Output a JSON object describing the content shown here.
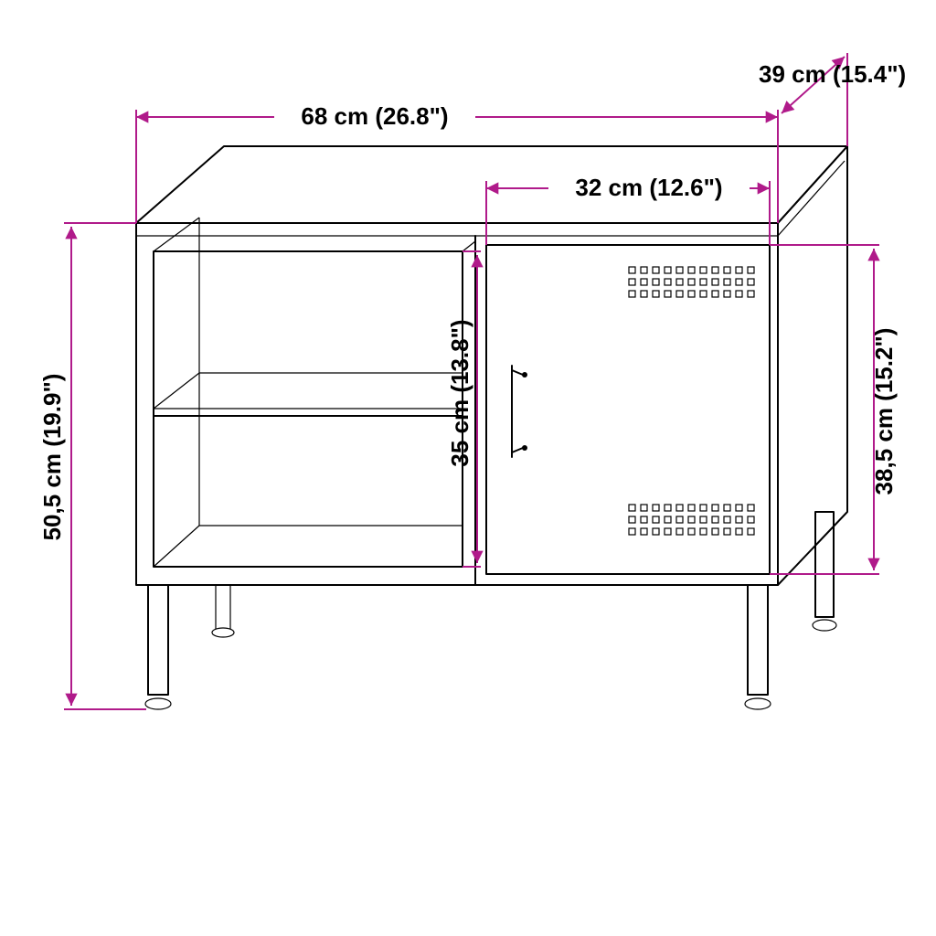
{
  "type": "dimensioned-line-drawing",
  "accent_color": "#b01a8a",
  "line_color": "#000000",
  "background_color": "#ffffff",
  "font_size_pt": 20,
  "dimensions": {
    "width": {
      "label": "68 cm (26.8\")"
    },
    "depth": {
      "label": "39 cm (15.4\")"
    },
    "door_width": {
      "label": "32 cm (12.6\")"
    },
    "shelf_height": {
      "label": "35 cm (13.8\")"
    },
    "total_height": {
      "label": "50,5 cm (19.9\")"
    },
    "door_height": {
      "label": "38,5 cm (15.2\")"
    }
  }
}
